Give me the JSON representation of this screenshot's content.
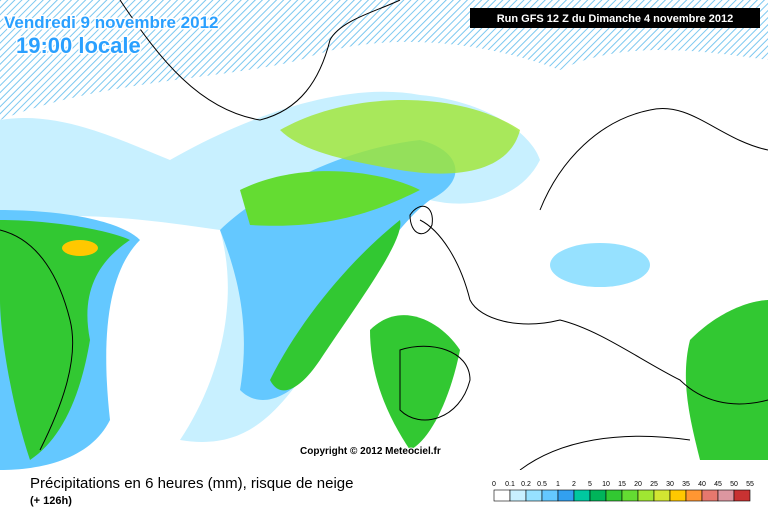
{
  "header": {
    "date": "Vendredi 9 novembre 2012",
    "time": "19:00 locale",
    "run": "Run GFS 12 Z du Dimanche 4 novembre 2012"
  },
  "copyright": "Copyright © 2012 Meteociel.fr",
  "footer": {
    "title": "Précipitations en 6 heures (mm), risque de neige",
    "lead": "(+ 126h)"
  },
  "legend": {
    "labels": [
      0,
      0.1,
      0.2,
      0.5,
      1,
      2,
      5,
      10,
      15,
      20,
      25,
      30,
      35,
      40,
      45,
      50,
      55
    ],
    "colors": [
      "#ffffff",
      "#c8f0ff",
      "#96e1ff",
      "#64c8ff",
      "#32a0f0",
      "#00c8a0",
      "#00b45a",
      "#32c832",
      "#64dc32",
      "#a0e632",
      "#d2e632",
      "#ffc800",
      "#ff9632",
      "#e6786e",
      "#dc96a0",
      "#c83232"
    ]
  }
}
